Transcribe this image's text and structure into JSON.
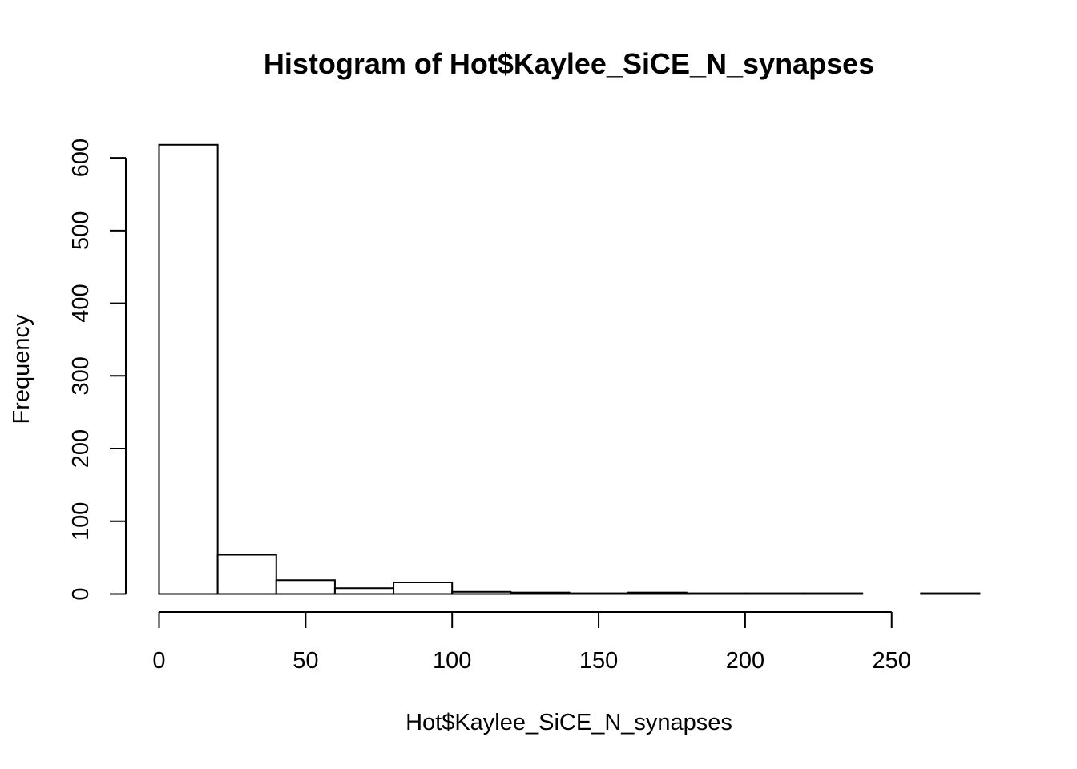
{
  "chart_data": {
    "type": "bar",
    "title": "Histogram of Hot$Kaylee_SiCE_N_synapses",
    "xlabel": "Hot$Kaylee_SiCE_N_synapses",
    "ylabel": "Frequency",
    "bin_edges": [
      0,
      20,
      40,
      60,
      80,
      100,
      120,
      140,
      160,
      180,
      200,
      220,
      240,
      260,
      280
    ],
    "values": [
      618,
      54,
      19,
      8,
      16,
      3,
      2,
      1,
      2,
      1,
      1,
      1,
      0,
      1
    ],
    "xlim": [
      0,
      280
    ],
    "ylim": [
      0,
      618
    ],
    "x_ticks": [
      0,
      50,
      100,
      150,
      200,
      250
    ],
    "y_ticks": [
      0,
      100,
      200,
      300,
      400,
      500,
      600
    ],
    "grid": false,
    "colors": {
      "bar_fill": "#ffffff",
      "bar_stroke": "#000000"
    }
  }
}
